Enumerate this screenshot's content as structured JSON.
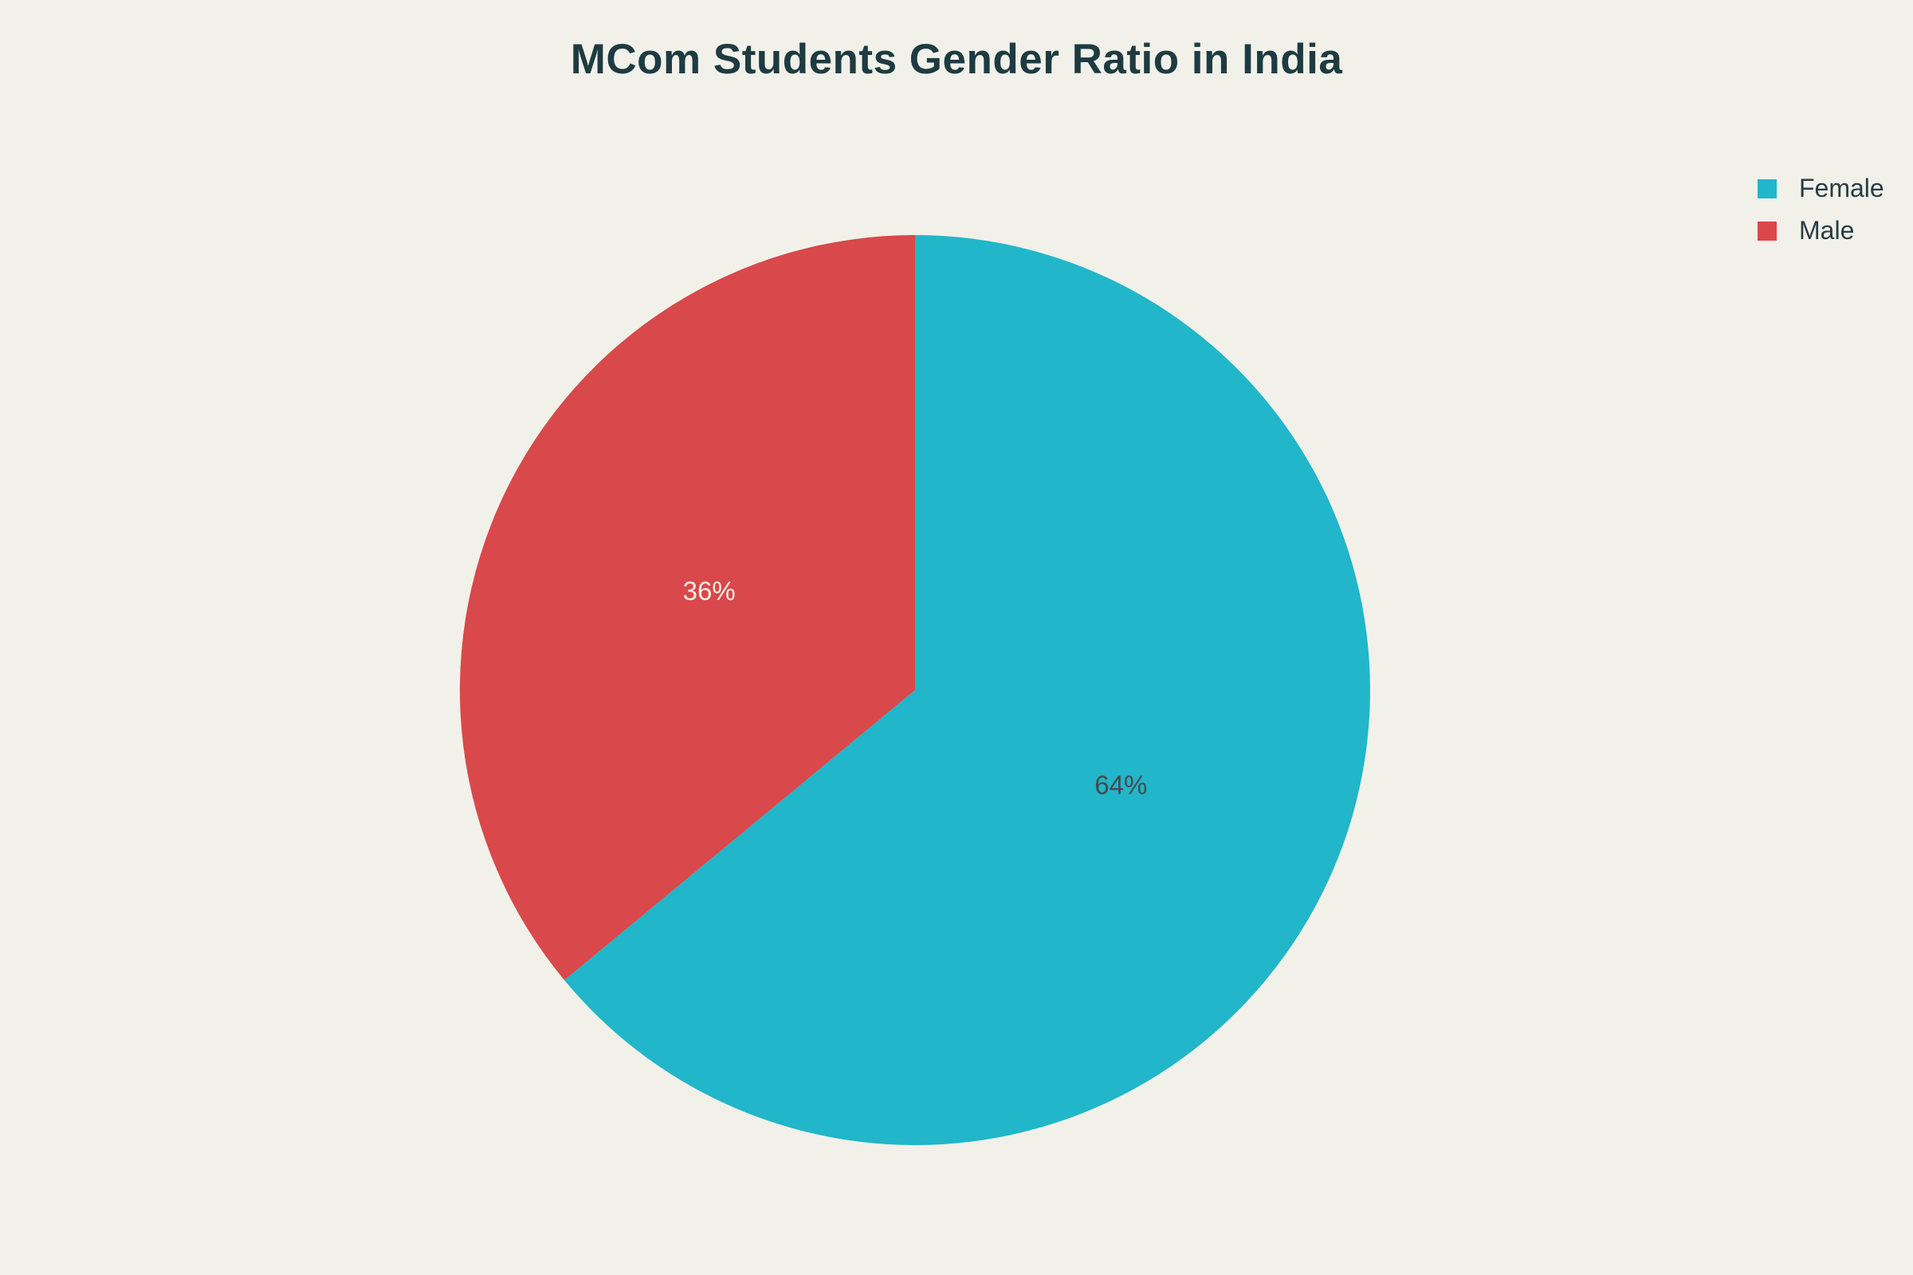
{
  "title": "MCom Students Gender Ratio in India",
  "colors": {
    "background": "#f1f1ea",
    "title_text": "#1d3b41",
    "legend_text": "#273c43"
  },
  "chart_data": {
    "type": "pie",
    "title": "MCom Students Gender Ratio in India",
    "labels": [
      "Female",
      "Male"
    ],
    "values": [
      64,
      36
    ],
    "value_unit": "%",
    "slice_labels": [
      "64%",
      "36%"
    ],
    "slice_colors": [
      "#21b6c9",
      "#d9484b"
    ],
    "slice_label_colors": [
      "#444b4d",
      "#f2f1ea"
    ],
    "start_angle_deg": 0,
    "direction": "clockwise",
    "legend_position": "top-right",
    "legend_entries": [
      "Female",
      "Male"
    ]
  },
  "legend": {
    "items": [
      {
        "label": "Female",
        "color": "#21b6c9"
      },
      {
        "label": "Male",
        "color": "#d9484b"
      }
    ]
  }
}
